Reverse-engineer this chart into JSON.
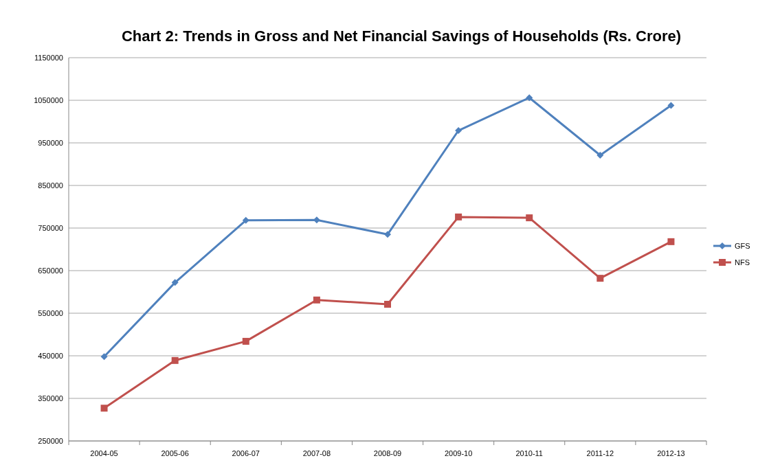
{
  "chart_data": {
    "type": "line",
    "title": "Chart 2: Trends in Gross and Net Financial Savings of Households (Rs. Crore)",
    "categories": [
      "2004-05",
      "2005-06",
      "2006-07",
      "2007-08",
      "2008-09",
      "2009-10",
      "2010-11",
      "2011-12",
      "2012-13"
    ],
    "series": [
      {
        "name": "GFS",
        "color": "#4f81bd",
        "marker": "diamond",
        "values": [
          448000,
          622000,
          768000,
          769000,
          735000,
          979000,
          1056000,
          921000,
          1038000
        ]
      },
      {
        "name": "NFS",
        "color": "#c0504d",
        "marker": "square",
        "values": [
          327000,
          439000,
          484000,
          581000,
          571000,
          776000,
          774000,
          632000,
          718000
        ]
      }
    ],
    "ylim": [
      250000,
      1150000
    ],
    "yticks": [
      250000,
      350000,
      450000,
      550000,
      650000,
      750000,
      850000,
      950000,
      1050000,
      1150000
    ],
    "grid": "y",
    "legend": "right"
  }
}
